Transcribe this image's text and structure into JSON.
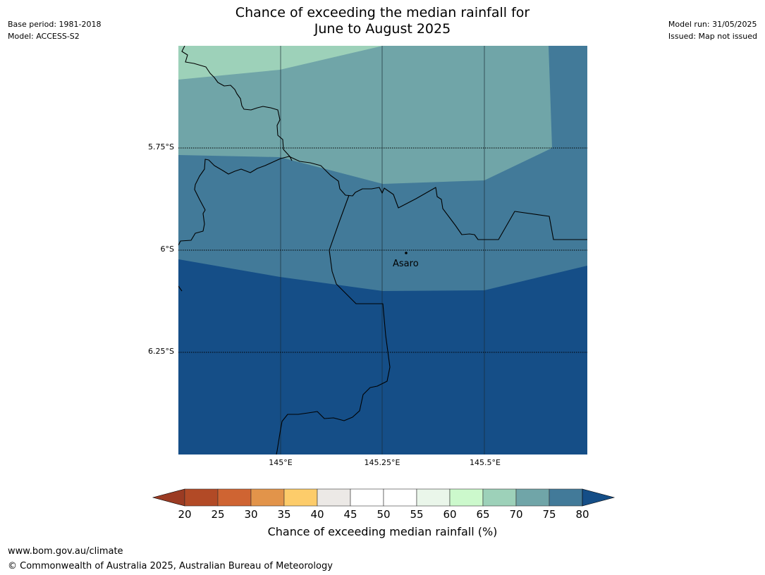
{
  "title": {
    "line1": "Chance of exceeding the median rainfall for",
    "line2": "June to August 2025"
  },
  "meta_left": {
    "base_period": "Base period: 1981-2018",
    "model": "Model: ACCESS-S2"
  },
  "meta_right": {
    "model_run": "Model run: 31/05/2025",
    "issued": "Issued: Map not issued"
  },
  "map": {
    "lat_labels": [
      "5.75°S",
      "6°S",
      "6.25°S"
    ],
    "lon_labels": [
      "145°E",
      "145.25°E",
      "145.5°E"
    ],
    "place": {
      "name": "Asaro"
    },
    "colors": {
      "band_65_70": "#9dd1b9",
      "band_70_75": "#70a5a8",
      "band_75_80": "#427a99",
      "band_above_80": "#154e87"
    }
  },
  "colorbar": {
    "label": "Chance of exceeding median rainfall (%)",
    "ticks": [
      "20",
      "25",
      "30",
      "35",
      "40",
      "45",
      "50",
      "55",
      "60",
      "65",
      "70",
      "75",
      "80"
    ],
    "under_color": "#9b3b23",
    "over_color": "#154e87",
    "colors": [
      "#b24a26",
      "#cf6432",
      "#e2944a",
      "#fdcc6a",
      "#ece9e6",
      "#ffffff",
      "#ffffff",
      "#eaf6ea",
      "#ccf9cc",
      "#9dd1b9",
      "#70a5a8",
      "#427a99"
    ]
  },
  "footer": {
    "url": "www.bom.gov.au/climate",
    "copyright": "© Commonwealth of Australia 2025, Australian Bureau of Meteorology"
  }
}
